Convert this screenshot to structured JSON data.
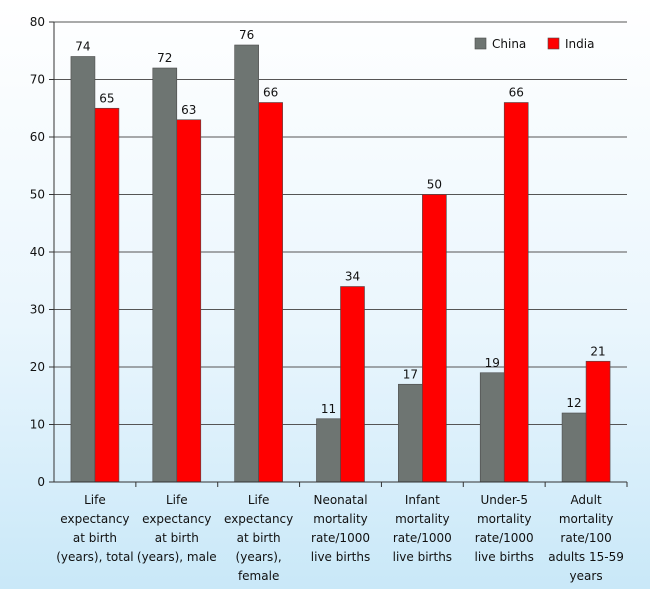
{
  "chart_data": {
    "type": "bar",
    "title": "",
    "xlabel": "",
    "ylabel": "",
    "ylim": [
      0,
      80
    ],
    "yticks": [
      0,
      10,
      20,
      30,
      40,
      50,
      60,
      70,
      80
    ],
    "grid": true,
    "legend_position": "top-right",
    "categories": [
      [
        "Life",
        "expectancy",
        "at birth",
        "(years), total"
      ],
      [
        "Life",
        "expectancy",
        "at birth",
        "(years), male"
      ],
      [
        "Life",
        "expectancy",
        "at birth",
        "(years),",
        "female"
      ],
      [
        "Neonatal",
        "mortality",
        "rate/1000",
        "live births"
      ],
      [
        "Infant",
        "mortality",
        "rate/1000",
        "live births"
      ],
      [
        "Under-5",
        "mortality",
        "rate/1000",
        "live births"
      ],
      [
        "Adult",
        "mortality",
        "rate/100",
        "adults 15-59",
        "years"
      ]
    ],
    "series": [
      {
        "name": "China",
        "color": "#6e7572",
        "values": [
          74,
          72,
          76,
          11,
          17,
          19,
          12
        ]
      },
      {
        "name": "India",
        "color": "#ff0000",
        "values": [
          65,
          63,
          66,
          34,
          50,
          66,
          21
        ]
      }
    ]
  }
}
